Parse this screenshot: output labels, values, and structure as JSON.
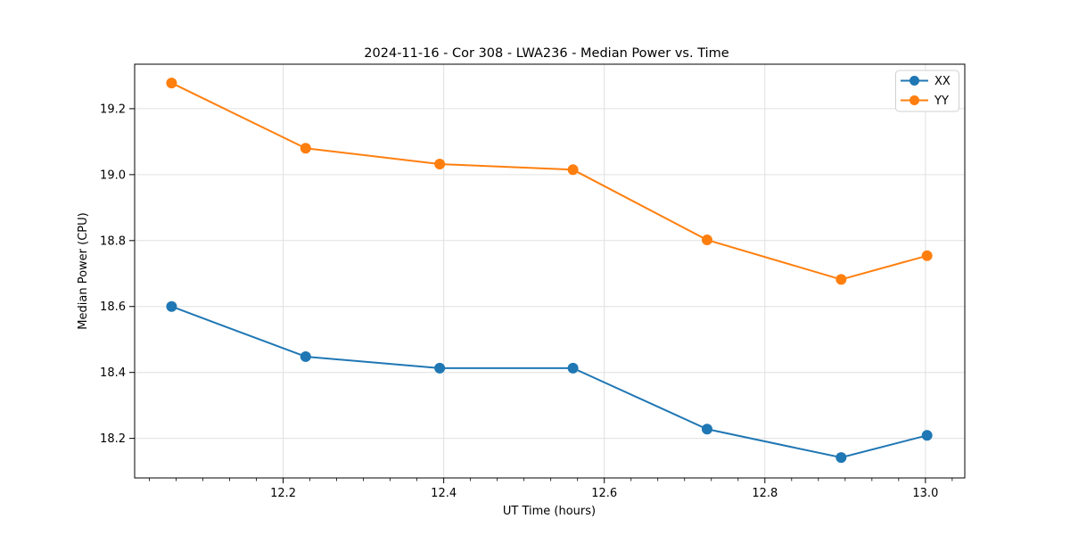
{
  "figure": {
    "background": "#ffffff",
    "spine_color": "#000000",
    "grid_color": "#e0e0e0"
  },
  "chart_data": {
    "type": "line",
    "title": "2024-11-16 - Cor 308 - LWA236 - Median Power vs. Time",
    "xlabel": "UT Time (hours)",
    "ylabel": "Median Power (CPU)",
    "x": [
      12.061,
      12.228,
      12.395,
      12.561,
      12.728,
      12.895,
      13.002
    ],
    "series": [
      {
        "name": "XX",
        "color": "#1f77b4",
        "values": [
          18.6,
          18.448,
          18.413,
          18.413,
          18.228,
          18.142,
          18.209
        ]
      },
      {
        "name": "YY",
        "color": "#ff7f0e",
        "values": [
          19.278,
          19.08,
          19.032,
          19.015,
          18.802,
          18.682,
          18.754
        ]
      }
    ],
    "xlim": [
      12.015,
      13.049
    ],
    "ylim": [
      18.08,
      19.335
    ],
    "xticks": [
      12.2,
      12.4,
      12.6,
      12.8,
      13.0
    ],
    "yticks": [
      18.2,
      18.4,
      18.6,
      18.8,
      19.0,
      19.2
    ],
    "x_minor_step": 0.0333333,
    "tick_decimals": 1,
    "grid": true,
    "legend_position": "upper right",
    "marker": "circle",
    "marker_radius": 6,
    "line_width": 2
  }
}
